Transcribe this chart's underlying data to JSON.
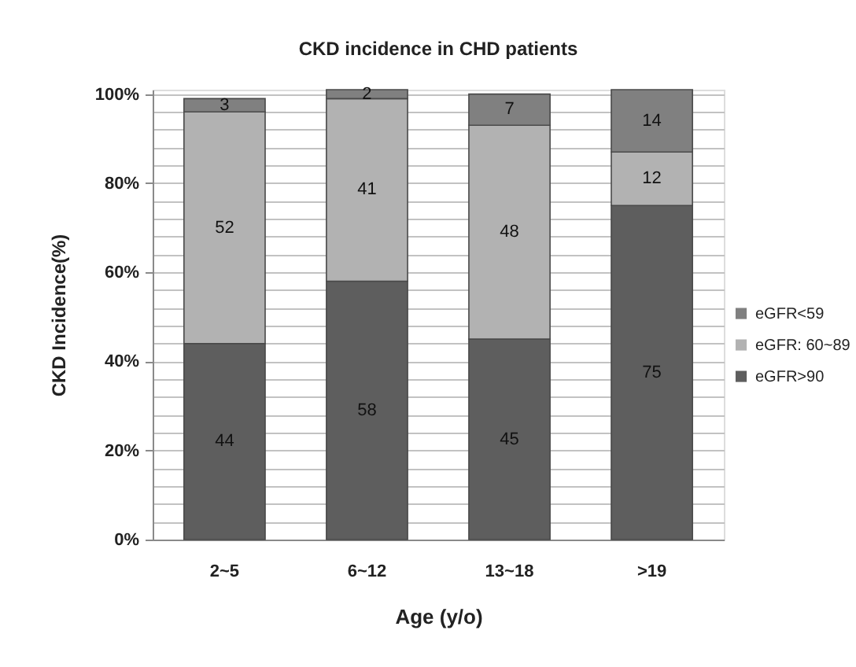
{
  "chart_data": {
    "type": "bar",
    "title": "CKD incidence in CHD patients",
    "xlabel": "Age (y/o)",
    "ylabel": "CKD Incidence(%)",
    "categories": [
      "2~5",
      "6~12",
      "13~18",
      ">19"
    ],
    "stacked": true,
    "series": [
      {
        "name": "eGFR>90",
        "color": "#5e5e5e",
        "values": [
          44,
          58,
          45,
          75
        ]
      },
      {
        "name": "eGFR: 60~89",
        "color": "#b2b2b2",
        "values": [
          52,
          41,
          48,
          12
        ]
      },
      {
        "name": "eGFR<59",
        "color": "#808080",
        "values": [
          3,
          2,
          7,
          14
        ]
      }
    ],
    "ylim": [
      0,
      101
    ],
    "yticks": [
      {
        "value": 0,
        "label": "0%"
      },
      {
        "value": 4,
        "label": null
      },
      {
        "value": 8,
        "label": null
      },
      {
        "value": 12,
        "label": null
      },
      {
        "value": 16,
        "label": null
      },
      {
        "value": 20,
        "label": "20%"
      },
      {
        "value": 24,
        "label": null
      },
      {
        "value": 28,
        "label": null
      },
      {
        "value": 32,
        "label": null
      },
      {
        "value": 36,
        "label": null
      },
      {
        "value": 40,
        "label": "40%"
      },
      {
        "value": 44,
        "label": null
      },
      {
        "value": 48,
        "label": null
      },
      {
        "value": 52,
        "label": null
      },
      {
        "value": 56,
        "label": null
      },
      {
        "value": 60,
        "label": "60%"
      },
      {
        "value": 64,
        "label": null
      },
      {
        "value": 68,
        "label": null
      },
      {
        "value": 72,
        "label": null
      },
      {
        "value": 76,
        "label": null
      },
      {
        "value": 80,
        "label": "80%"
      },
      {
        "value": 84,
        "label": null
      },
      {
        "value": 88,
        "label": null
      },
      {
        "value": 92,
        "label": null
      },
      {
        "value": 96,
        "label": null
      },
      {
        "value": 100,
        "label": "100%"
      }
    ],
    "grid": "y",
    "legend": "right",
    "data_labels": true
  }
}
